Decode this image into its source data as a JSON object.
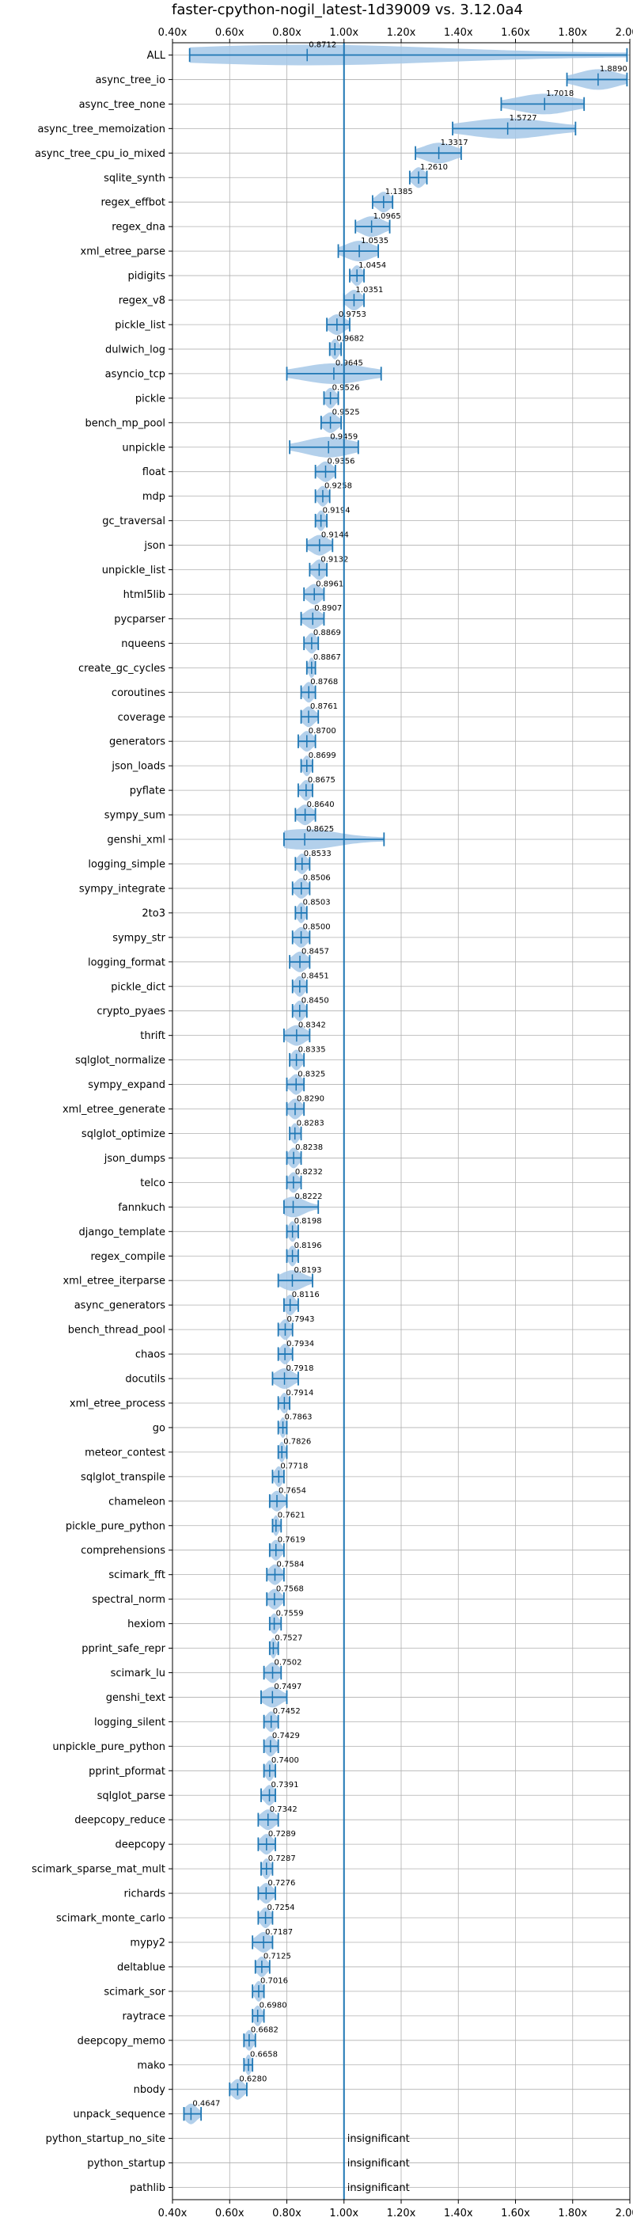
{
  "chart_data": {
    "type": "violin",
    "title": "faster-cpython-nogil_latest-1d39009 vs. 3.12.0a4",
    "xlabel": "",
    "ylabel": "",
    "xlim": [
      0.4,
      2.0
    ],
    "xticks": [
      0.4,
      0.6,
      0.8,
      1.0,
      1.2,
      1.4,
      1.6,
      1.8,
      2.0
    ],
    "xtick_labels": [
      "0.40x",
      "0.60x",
      "0.80x",
      "1.00x",
      "1.20x",
      "1.40x",
      "1.60x",
      "1.80x",
      "2.00x"
    ],
    "reference_line": 1.0,
    "grid": true,
    "color": "#1f77b4",
    "violin_color": "#a6c8e8",
    "insignificant_text": "insignificant",
    "benchmarks": [
      {
        "name": "ALL",
        "mean": 0.8712,
        "label": "0.8712",
        "min": 0.46,
        "max": 1.99
      },
      {
        "name": "async_tree_io",
        "mean": 1.889,
        "label": "1.8890",
        "min": 1.78,
        "max": 1.99
      },
      {
        "name": "async_tree_none",
        "mean": 1.7018,
        "label": "1.7018",
        "min": 1.55,
        "max": 1.84
      },
      {
        "name": "async_tree_memoization",
        "mean": 1.5727,
        "label": "1.5727",
        "min": 1.38,
        "max": 1.81
      },
      {
        "name": "async_tree_cpu_io_mixed",
        "mean": 1.3317,
        "label": "1.3317",
        "min": 1.25,
        "max": 1.41
      },
      {
        "name": "sqlite_synth",
        "mean": 1.261,
        "label": "1.2610",
        "min": 1.23,
        "max": 1.29
      },
      {
        "name": "regex_effbot",
        "mean": 1.1385,
        "label": "1.1385",
        "min": 1.1,
        "max": 1.17
      },
      {
        "name": "regex_dna",
        "mean": 1.0965,
        "label": "1.0965",
        "min": 1.04,
        "max": 1.16
      },
      {
        "name": "xml_etree_parse",
        "mean": 1.0535,
        "label": "1.0535",
        "min": 0.98,
        "max": 1.12
      },
      {
        "name": "pidigits",
        "mean": 1.0454,
        "label": "1.0454",
        "min": 1.02,
        "max": 1.07
      },
      {
        "name": "regex_v8",
        "mean": 1.0351,
        "label": "1.0351",
        "min": 1.0,
        "max": 1.07
      },
      {
        "name": "pickle_list",
        "mean": 0.9753,
        "label": "0.9753",
        "min": 0.94,
        "max": 1.02
      },
      {
        "name": "dulwich_log",
        "mean": 0.9682,
        "label": "0.9682",
        "min": 0.95,
        "max": 0.99
      },
      {
        "name": "asyncio_tcp",
        "mean": 0.9645,
        "label": "0.9645",
        "min": 0.8,
        "max": 1.13
      },
      {
        "name": "pickle",
        "mean": 0.9526,
        "label": "0.9526",
        "min": 0.93,
        "max": 0.98
      },
      {
        "name": "bench_mp_pool",
        "mean": 0.9525,
        "label": "0.9525",
        "min": 0.92,
        "max": 0.99
      },
      {
        "name": "unpickle",
        "mean": 0.9459,
        "label": "0.9459",
        "min": 0.81,
        "max": 1.05
      },
      {
        "name": "float",
        "mean": 0.9356,
        "label": "0.9356",
        "min": 0.9,
        "max": 0.97
      },
      {
        "name": "mdp",
        "mean": 0.9258,
        "label": "0.9258",
        "min": 0.9,
        "max": 0.95
      },
      {
        "name": "gc_traversal",
        "mean": 0.9194,
        "label": "0.9194",
        "min": 0.9,
        "max": 0.94
      },
      {
        "name": "json",
        "mean": 0.9144,
        "label": "0.9144",
        "min": 0.87,
        "max": 0.96
      },
      {
        "name": "unpickle_list",
        "mean": 0.9132,
        "label": "0.9132",
        "min": 0.88,
        "max": 0.94
      },
      {
        "name": "html5lib",
        "mean": 0.8961,
        "label": "0.8961",
        "min": 0.86,
        "max": 0.93
      },
      {
        "name": "pycparser",
        "mean": 0.8907,
        "label": "0.8907",
        "min": 0.85,
        "max": 0.93
      },
      {
        "name": "nqueens",
        "mean": 0.8869,
        "label": "0.8869",
        "min": 0.86,
        "max": 0.91
      },
      {
        "name": "create_gc_cycles",
        "mean": 0.8867,
        "label": "0.8867",
        "min": 0.87,
        "max": 0.9
      },
      {
        "name": "coroutines",
        "mean": 0.8768,
        "label": "0.8768",
        "min": 0.85,
        "max": 0.9
      },
      {
        "name": "coverage",
        "mean": 0.8761,
        "label": "0.8761",
        "min": 0.85,
        "max": 0.91
      },
      {
        "name": "generators",
        "mean": 0.87,
        "label": "0.8700",
        "min": 0.84,
        "max": 0.9
      },
      {
        "name": "json_loads",
        "mean": 0.8699,
        "label": "0.8699",
        "min": 0.85,
        "max": 0.89
      },
      {
        "name": "pyflate",
        "mean": 0.8675,
        "label": "0.8675",
        "min": 0.84,
        "max": 0.89
      },
      {
        "name": "sympy_sum",
        "mean": 0.864,
        "label": "0.8640",
        "min": 0.83,
        "max": 0.9
      },
      {
        "name": "genshi_xml",
        "mean": 0.8625,
        "label": "0.8625",
        "min": 0.79,
        "max": 1.14
      },
      {
        "name": "logging_simple",
        "mean": 0.8533,
        "label": "0.8533",
        "min": 0.83,
        "max": 0.88
      },
      {
        "name": "sympy_integrate",
        "mean": 0.8506,
        "label": "0.8506",
        "min": 0.82,
        "max": 0.88
      },
      {
        "name": "2to3",
        "mean": 0.8503,
        "label": "0.8503",
        "min": 0.83,
        "max": 0.87
      },
      {
        "name": "sympy_str",
        "mean": 0.85,
        "label": "0.8500",
        "min": 0.82,
        "max": 0.88
      },
      {
        "name": "logging_format",
        "mean": 0.8457,
        "label": "0.8457",
        "min": 0.81,
        "max": 0.88
      },
      {
        "name": "pickle_dict",
        "mean": 0.8451,
        "label": "0.8451",
        "min": 0.82,
        "max": 0.87
      },
      {
        "name": "crypto_pyaes",
        "mean": 0.845,
        "label": "0.8450",
        "min": 0.82,
        "max": 0.87
      },
      {
        "name": "thrift",
        "mean": 0.8342,
        "label": "0.8342",
        "min": 0.79,
        "max": 0.88
      },
      {
        "name": "sqlglot_normalize",
        "mean": 0.8335,
        "label": "0.8335",
        "min": 0.81,
        "max": 0.86
      },
      {
        "name": "sympy_expand",
        "mean": 0.8325,
        "label": "0.8325",
        "min": 0.8,
        "max": 0.86
      },
      {
        "name": "xml_etree_generate",
        "mean": 0.829,
        "label": "0.8290",
        "min": 0.8,
        "max": 0.86
      },
      {
        "name": "sqlglot_optimize",
        "mean": 0.8283,
        "label": "0.8283",
        "min": 0.81,
        "max": 0.85
      },
      {
        "name": "json_dumps",
        "mean": 0.8238,
        "label": "0.8238",
        "min": 0.8,
        "max": 0.85
      },
      {
        "name": "telco",
        "mean": 0.8232,
        "label": "0.8232",
        "min": 0.8,
        "max": 0.85
      },
      {
        "name": "fannkuch",
        "mean": 0.8222,
        "label": "0.8222",
        "min": 0.79,
        "max": 0.91
      },
      {
        "name": "django_template",
        "mean": 0.8198,
        "label": "0.8198",
        "min": 0.8,
        "max": 0.84
      },
      {
        "name": "regex_compile",
        "mean": 0.8196,
        "label": "0.8196",
        "min": 0.8,
        "max": 0.84
      },
      {
        "name": "xml_etree_iterparse",
        "mean": 0.8193,
        "label": "0.8193",
        "min": 0.77,
        "max": 0.89
      },
      {
        "name": "async_generators",
        "mean": 0.8116,
        "label": "0.8116",
        "min": 0.79,
        "max": 0.84
      },
      {
        "name": "bench_thread_pool",
        "mean": 0.7943,
        "label": "0.7943",
        "min": 0.77,
        "max": 0.82
      },
      {
        "name": "chaos",
        "mean": 0.7934,
        "label": "0.7934",
        "min": 0.77,
        "max": 0.82
      },
      {
        "name": "docutils",
        "mean": 0.7918,
        "label": "0.7918",
        "min": 0.75,
        "max": 0.84
      },
      {
        "name": "xml_etree_process",
        "mean": 0.7914,
        "label": "0.7914",
        "min": 0.77,
        "max": 0.81
      },
      {
        "name": "go",
        "mean": 0.7863,
        "label": "0.7863",
        "min": 0.77,
        "max": 0.8
      },
      {
        "name": "meteor_contest",
        "mean": 0.7826,
        "label": "0.7826",
        "min": 0.77,
        "max": 0.8
      },
      {
        "name": "sqlglot_transpile",
        "mean": 0.7718,
        "label": "0.7718",
        "min": 0.75,
        "max": 0.79
      },
      {
        "name": "chameleon",
        "mean": 0.7654,
        "label": "0.7654",
        "min": 0.74,
        "max": 0.8
      },
      {
        "name": "pickle_pure_python",
        "mean": 0.7621,
        "label": "0.7621",
        "min": 0.75,
        "max": 0.78
      },
      {
        "name": "comprehensions",
        "mean": 0.7619,
        "label": "0.7619",
        "min": 0.74,
        "max": 0.79
      },
      {
        "name": "scimark_fft",
        "mean": 0.7584,
        "label": "0.7584",
        "min": 0.73,
        "max": 0.79
      },
      {
        "name": "spectral_norm",
        "mean": 0.7568,
        "label": "0.7568",
        "min": 0.73,
        "max": 0.79
      },
      {
        "name": "hexiom",
        "mean": 0.7559,
        "label": "0.7559",
        "min": 0.74,
        "max": 0.78
      },
      {
        "name": "pprint_safe_repr",
        "mean": 0.7527,
        "label": "0.7527",
        "min": 0.74,
        "max": 0.77
      },
      {
        "name": "scimark_lu",
        "mean": 0.7502,
        "label": "0.7502",
        "min": 0.72,
        "max": 0.78
      },
      {
        "name": "genshi_text",
        "mean": 0.7497,
        "label": "0.7497",
        "min": 0.71,
        "max": 0.8
      },
      {
        "name": "logging_silent",
        "mean": 0.7452,
        "label": "0.7452",
        "min": 0.72,
        "max": 0.77
      },
      {
        "name": "unpickle_pure_python",
        "mean": 0.7429,
        "label": "0.7429",
        "min": 0.72,
        "max": 0.77
      },
      {
        "name": "pprint_pformat",
        "mean": 0.74,
        "label": "0.7400",
        "min": 0.72,
        "max": 0.76
      },
      {
        "name": "sqlglot_parse",
        "mean": 0.7391,
        "label": "0.7391",
        "min": 0.71,
        "max": 0.76
      },
      {
        "name": "deepcopy_reduce",
        "mean": 0.7342,
        "label": "0.7342",
        "min": 0.7,
        "max": 0.77
      },
      {
        "name": "deepcopy",
        "mean": 0.7289,
        "label": "0.7289",
        "min": 0.7,
        "max": 0.76
      },
      {
        "name": "scimark_sparse_mat_mult",
        "mean": 0.7287,
        "label": "0.7287",
        "min": 0.71,
        "max": 0.75
      },
      {
        "name": "richards",
        "mean": 0.7276,
        "label": "0.7276",
        "min": 0.7,
        "max": 0.76
      },
      {
        "name": "scimark_monte_carlo",
        "mean": 0.7254,
        "label": "0.7254",
        "min": 0.7,
        "max": 0.75
      },
      {
        "name": "mypy2",
        "mean": 0.7187,
        "label": "0.7187",
        "min": 0.68,
        "max": 0.75
      },
      {
        "name": "deltablue",
        "mean": 0.7125,
        "label": "0.7125",
        "min": 0.69,
        "max": 0.74
      },
      {
        "name": "scimark_sor",
        "mean": 0.7016,
        "label": "0.7016",
        "min": 0.68,
        "max": 0.72
      },
      {
        "name": "raytrace",
        "mean": 0.698,
        "label": "0.6980",
        "min": 0.68,
        "max": 0.72
      },
      {
        "name": "deepcopy_memo",
        "mean": 0.6682,
        "label": "0.6682",
        "min": 0.65,
        "max": 0.69
      },
      {
        "name": "mako",
        "mean": 0.6658,
        "label": "0.6658",
        "min": 0.65,
        "max": 0.68
      },
      {
        "name": "nbody",
        "mean": 0.628,
        "label": "0.6280",
        "min": 0.6,
        "max": 0.66
      },
      {
        "name": "unpack_sequence",
        "mean": 0.4647,
        "label": "0.4647",
        "min": 0.44,
        "max": 0.5
      },
      {
        "name": "python_startup_no_site",
        "insignificant": true
      },
      {
        "name": "python_startup",
        "insignificant": true
      },
      {
        "name": "pathlib",
        "insignificant": true
      }
    ]
  }
}
